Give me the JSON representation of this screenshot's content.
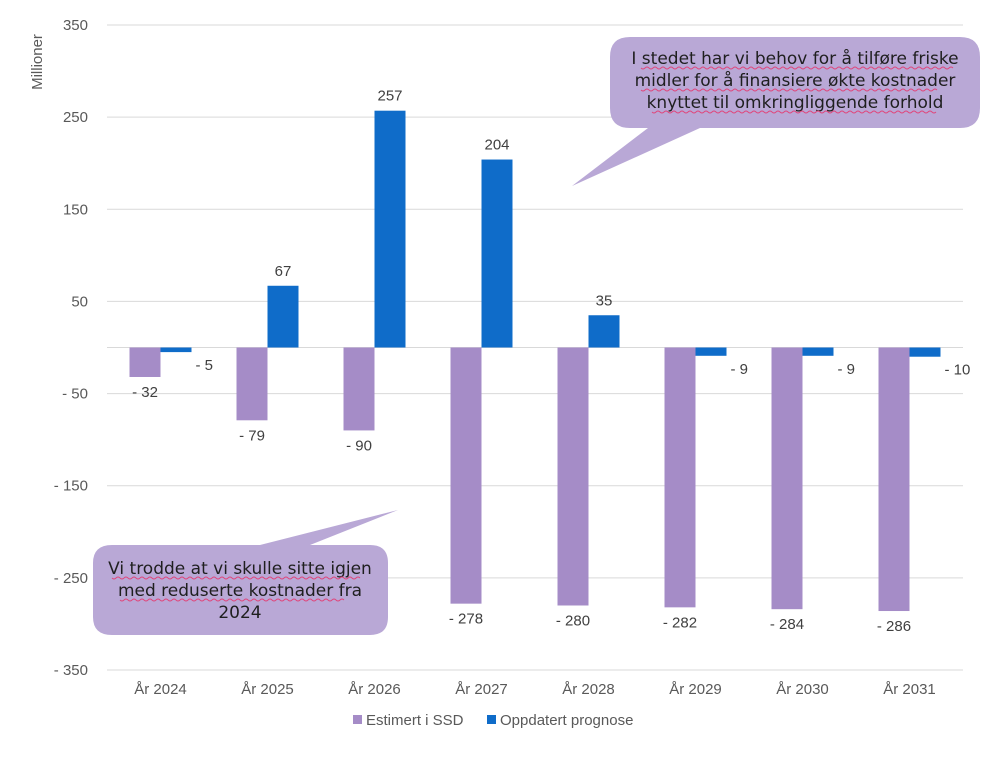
{
  "chart_data": {
    "type": "bar",
    "title": "",
    "xlabel": "",
    "ylabel": "Millioner",
    "ylim": [
      -350,
      350
    ],
    "yticks": [
      350,
      250,
      150,
      50,
      -50,
      -150,
      -250,
      -350
    ],
    "ytick_labels": [
      "350",
      "250",
      "150",
      "50",
      "- 50",
      "- 150",
      "- 250",
      "- 350"
    ],
    "categories": [
      "År 2024",
      "År 2025",
      "År 2026",
      "År 2027",
      "År 2028",
      "År 2029",
      "År 2030",
      "År 2031"
    ],
    "series": [
      {
        "name": "Estimert i SSD",
        "color": "#a58cc7",
        "values": [
          -32,
          -79,
          -90,
          -278,
          -280,
          -282,
          -284,
          -286
        ],
        "labels": [
          "- 32",
          "- 79",
          "- 90",
          "- 278",
          "- 280",
          "- 282",
          "- 284",
          "- 286"
        ]
      },
      {
        "name": "Oppdatert prognose",
        "color": "#0f6cc9",
        "values": [
          -5,
          67,
          257,
          204,
          35,
          -9,
          -9,
          -10
        ],
        "labels": [
          "- 5",
          "67",
          "257",
          "204",
          "35",
          "- 9",
          "- 9",
          "- 10"
        ]
      }
    ],
    "legend_position": "bottom",
    "grid": true,
    "annotations": [
      {
        "lines": [
          "I stedet har vi behov for å tilføre friske",
          "midler for å finansiere økte kostnader",
          "knyttet til omkringliggende forhold"
        ],
        "fill": "#b9a8d6"
      },
      {
        "lines": [
          "Vi trodde at vi skulle sitte igjen",
          "med reduserte kostnader fra",
          "2024"
        ],
        "fill": "#b9a8d6"
      }
    ]
  }
}
